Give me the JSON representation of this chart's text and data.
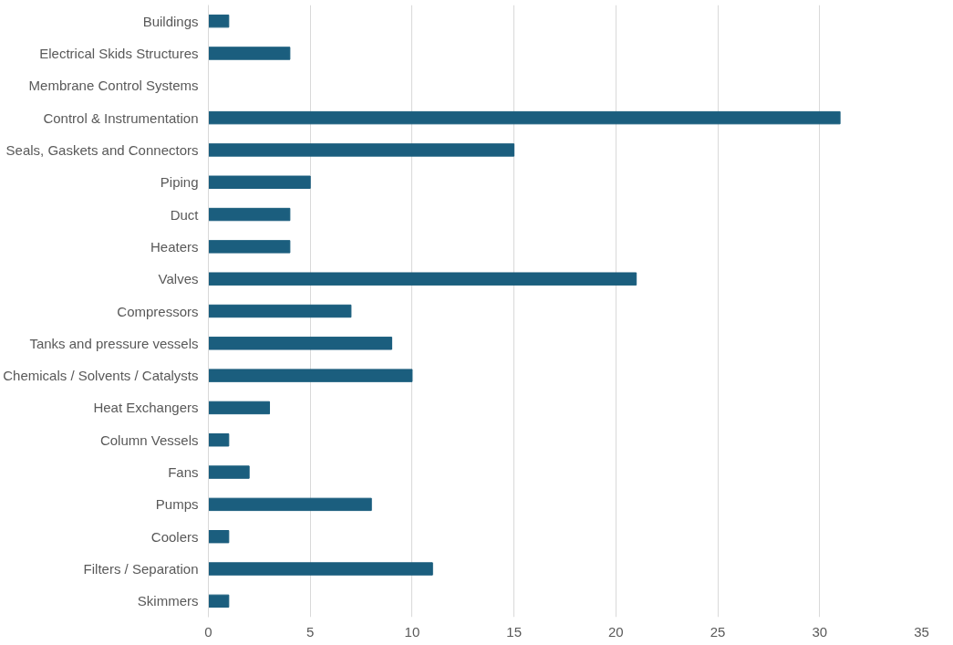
{
  "chart_data": {
    "type": "bar",
    "orientation": "horizontal",
    "categories": [
      "Buildings",
      "Electrical Skids Structures",
      "Membrane Control Systems",
      "Control & Instrumentation",
      "Seals, Gaskets and Connectors",
      "Piping",
      "Duct",
      "Heaters",
      "Valves",
      "Compressors",
      "Tanks and pressure vessels",
      "Chemicals / Solvents / Catalysts",
      "Heat Exchangers",
      "Column Vessels",
      "Fans",
      "Pumps",
      "Coolers",
      "Filters / Separation",
      "Skimmers"
    ],
    "values": [
      1,
      4,
      0,
      31,
      15,
      5,
      4,
      4,
      21,
      7,
      9,
      10,
      3,
      1,
      2,
      8,
      1,
      11,
      1
    ],
    "color": "#1b5e7e",
    "xlim": [
      0,
      35
    ],
    "xticks": [
      0,
      5,
      10,
      15,
      20,
      25,
      30,
      35
    ],
    "grid": "x"
  }
}
